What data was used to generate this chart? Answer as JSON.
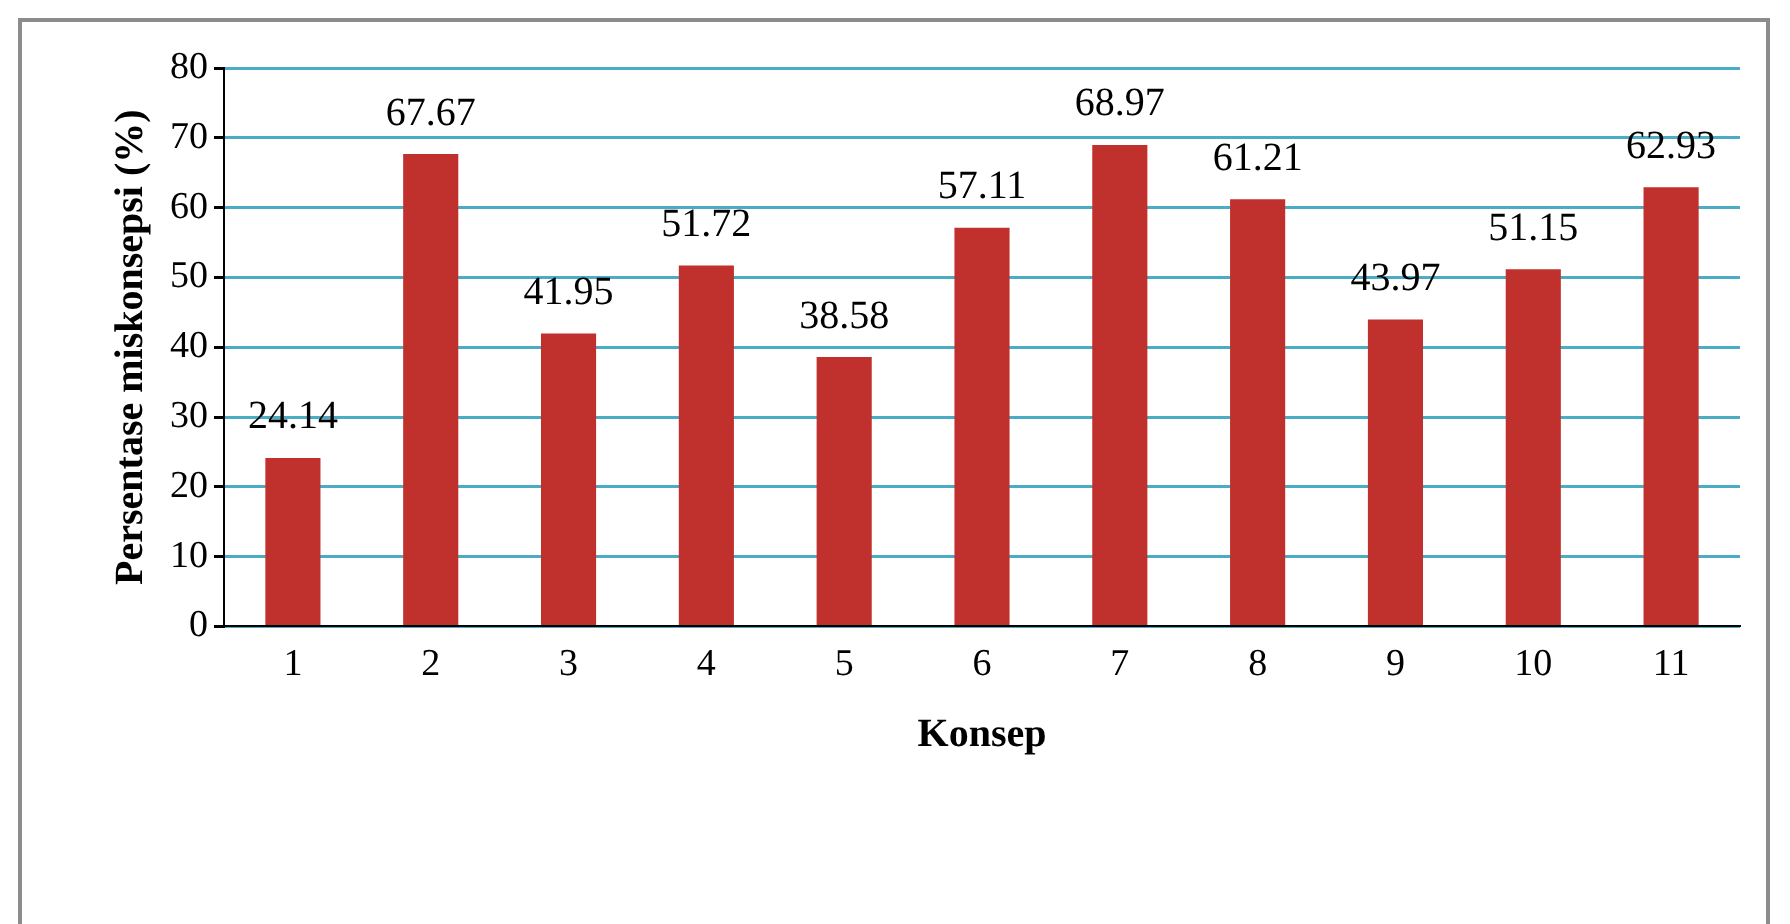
{
  "chart_data": {
    "type": "bar",
    "xlabel": "Konsep",
    "ylabel": "Persentase miskonsepsi (%)",
    "categories": [
      "1",
      "2",
      "3",
      "4",
      "5",
      "6",
      "7",
      "8",
      "9",
      "10",
      "11"
    ],
    "values": [
      24.14,
      67.67,
      41.95,
      51.72,
      38.58,
      57.11,
      68.97,
      61.21,
      43.97,
      51.15,
      62.93
    ],
    "color": "#c0302c",
    "ylim": [
      0,
      80
    ],
    "yticks": [
      0,
      10,
      20,
      30,
      40,
      50,
      60,
      70,
      80
    ],
    "grid": "y",
    "data_labels": true,
    "legend": false
  }
}
